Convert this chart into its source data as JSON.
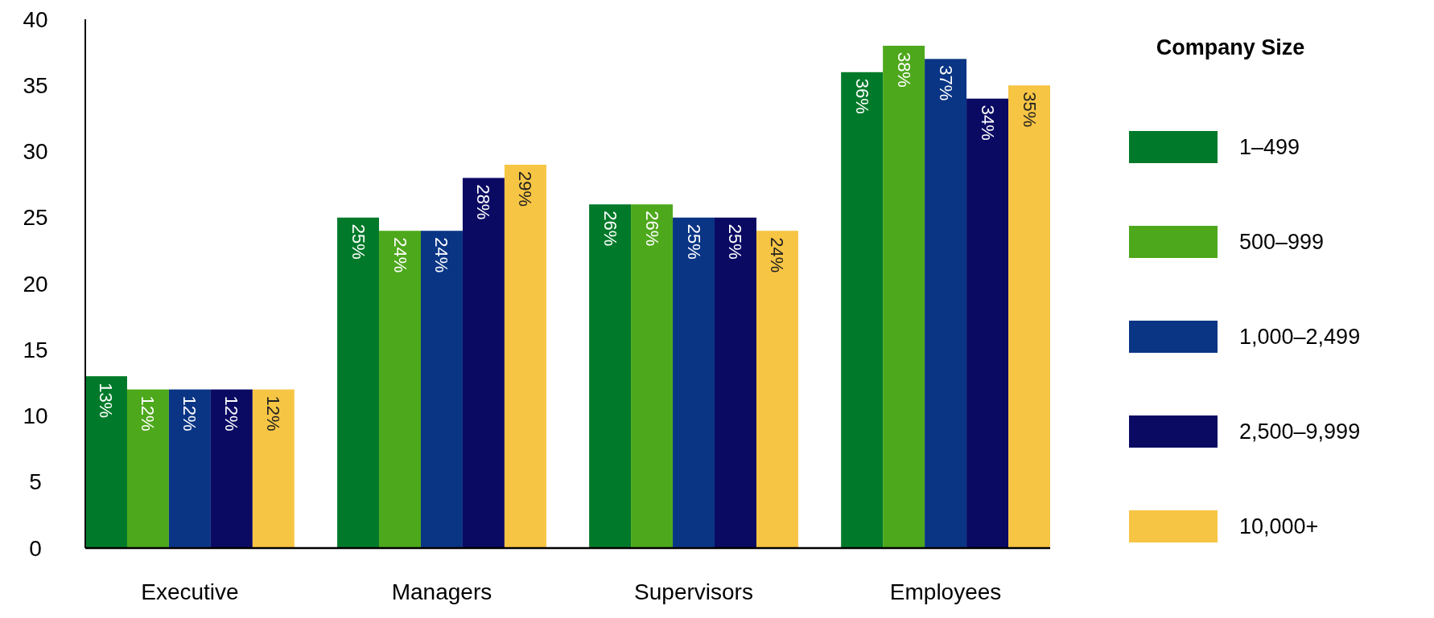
{
  "chart_data": {
    "type": "bar",
    "categories": [
      "Executive",
      "Managers",
      "Supervisors",
      "Employees"
    ],
    "legend_title": "Company Size",
    "legend": "right",
    "grid": false,
    "ylim": [
      0,
      40
    ],
    "yticks": [
      0,
      5,
      10,
      15,
      20,
      25,
      30,
      35,
      40
    ],
    "series": [
      {
        "name": "1–499",
        "color": "#007a2a",
        "values": [
          13,
          25,
          26,
          36
        ],
        "value_labels": [
          "13%",
          "25%",
          "26%",
          "36%"
        ]
      },
      {
        "name": "500–999",
        "color": "#4ea81c",
        "values": [
          12,
          24,
          26,
          38
        ],
        "value_labels": [
          "12%",
          "24%",
          "26%",
          "38%"
        ]
      },
      {
        "name": "1,000–2,499",
        "color": "#0a3585",
        "values": [
          12,
          24,
          25,
          37
        ],
        "value_labels": [
          "12%",
          "24%",
          "25%",
          "37%"
        ]
      },
      {
        "name": "2,500–9,999",
        "color": "#0b0a63",
        "values": [
          12,
          28,
          25,
          34
        ],
        "value_labels": [
          "12%",
          "28%",
          "25%",
          "34%"
        ]
      },
      {
        "name": "10,000+",
        "color": "#f7c544",
        "values": [
          12,
          29,
          24,
          35
        ],
        "value_labels": [
          "12%",
          "29%",
          "24%",
          "35%"
        ]
      }
    ]
  }
}
